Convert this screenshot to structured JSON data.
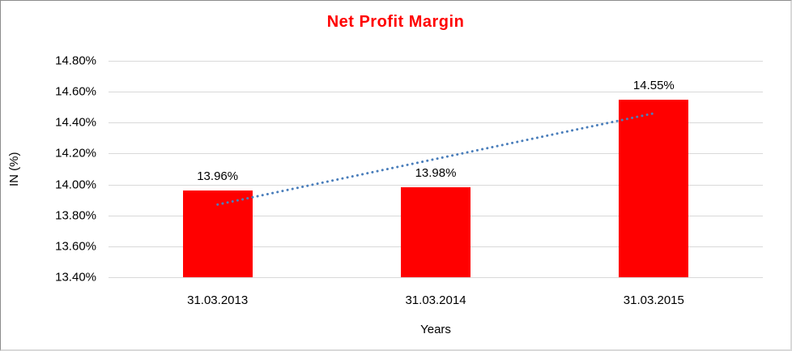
{
  "chart_data": {
    "type": "bar",
    "title": "Net Profit Margin",
    "title_color": "#ff0000",
    "xlabel": "Years",
    "ylabel": "IN (%)",
    "categories": [
      "31.03.2013",
      "31.03.2014",
      "31.03.2015"
    ],
    "values": [
      13.96,
      13.98,
      14.55
    ],
    "data_labels": [
      "13.96%",
      "13.98%",
      "14.55%"
    ],
    "bar_color": "#ff0000",
    "ylim": [
      13.4,
      14.8
    ],
    "yticks": [
      {
        "label": "14.80%",
        "value": 14.8
      },
      {
        "label": "14.60%",
        "value": 14.6
      },
      {
        "label": "14.40%",
        "value": 14.4
      },
      {
        "label": "14.20%",
        "value": 14.2
      },
      {
        "label": "14.00%",
        "value": 14.0
      },
      {
        "label": "13.80%",
        "value": 13.8
      },
      {
        "label": "13.60%",
        "value": 13.6
      },
      {
        "label": "13.40%",
        "value": 13.4
      }
    ],
    "grid": true,
    "gridline_color": "#d9d9d9",
    "legend": "none",
    "trendline": {
      "type": "linear",
      "style": "dotted",
      "color": "#4a7ebb",
      "start_value": 13.87,
      "end_value": 14.46
    }
  }
}
